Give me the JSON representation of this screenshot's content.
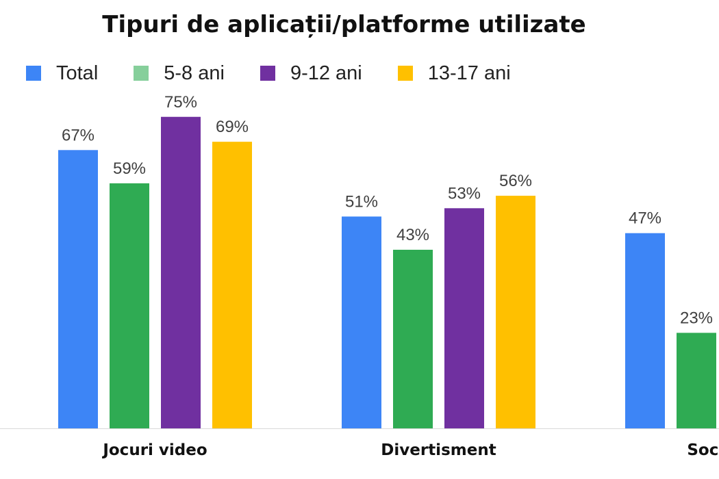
{
  "chart_data": {
    "type": "bar",
    "title": "Tipuri de aplicații/platforme utilizate",
    "categories": [
      "Jocuri video",
      "Divertisment",
      "Social r"
    ],
    "series": [
      {
        "name": "Total",
        "color": "#3d85f6",
        "values": [
          67,
          51,
          47
        ]
      },
      {
        "name": "5-8 ani",
        "color": "#2fab53",
        "values": [
          59,
          43,
          23
        ]
      },
      {
        "name": "9-12 ani",
        "color": "#7030a0",
        "values": [
          75,
          53,
          null
        ]
      },
      {
        "name": "13-17 ani",
        "color": "#ffc000",
        "values": [
          69,
          56,
          null
        ]
      }
    ],
    "legend_swatch_colors": [
      "#3d85f6",
      "#86cf9b",
      "#7030a0",
      "#ffc000"
    ],
    "value_suffix": "%",
    "ylim": [
      0,
      100
    ],
    "grid": false,
    "legend_position": "top-left"
  }
}
